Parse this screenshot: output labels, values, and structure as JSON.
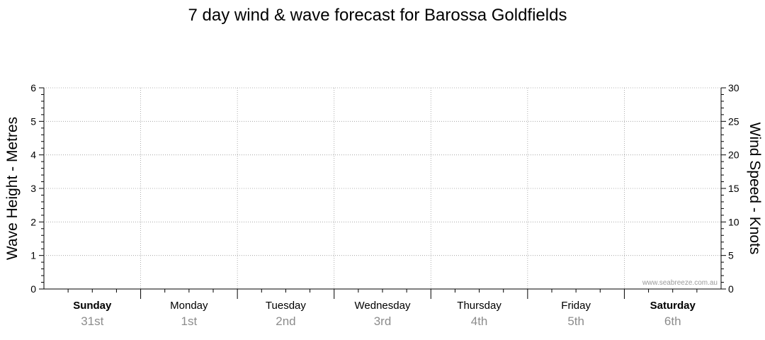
{
  "chart_data": {
    "type": "line",
    "title": "7 day wind & wave forecast for Barossa Goldfields",
    "ylabel_left": "Wave Height - Metres",
    "ylabel_right": "Wind Speed - Knots",
    "y_left": {
      "range": [
        0,
        6
      ],
      "ticks": [
        "0",
        "1",
        "2",
        "3",
        "4",
        "5",
        "6"
      ]
    },
    "y_right": {
      "range": [
        0,
        30
      ],
      "ticks": [
        "0",
        "5",
        "10",
        "15",
        "20",
        "25",
        "30"
      ]
    },
    "days": [
      {
        "day": "Sunday",
        "date": "31st",
        "weekend": true
      },
      {
        "day": "Monday",
        "date": "1st",
        "weekend": false
      },
      {
        "day": "Tuesday",
        "date": "2nd",
        "weekend": false
      },
      {
        "day": "Wednesday",
        "date": "3rd",
        "weekend": false
      },
      {
        "day": "Thursday",
        "date": "4th",
        "weekend": false
      },
      {
        "day": "Friday",
        "date": "5th",
        "weekend": false
      },
      {
        "day": "Saturday",
        "date": "6th",
        "weekend": true
      }
    ],
    "series": [],
    "grid": true,
    "watermark": "www.seabreeze.com.au"
  }
}
